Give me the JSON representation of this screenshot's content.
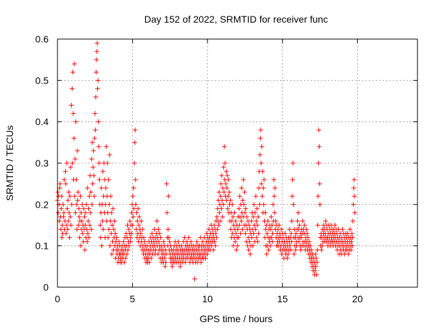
{
  "chart_data": {
    "type": "scatter",
    "title": "Day 152 of 2022, SRMTID for receiver func",
    "xlabel": "GPS time / hours",
    "ylabel": "SRMTID / TECUs",
    "xlim": [
      0,
      24
    ],
    "ylim": [
      0,
      0.6
    ],
    "x_ticks": [
      0,
      5,
      10,
      15,
      20
    ],
    "x_tick_labels": [
      "0",
      "5",
      "10",
      "15",
      "20"
    ],
    "y_ticks": [
      0,
      0.1,
      0.2,
      0.3,
      0.4,
      0.5,
      0.6
    ],
    "y_tick_labels": [
      "0",
      "0.1",
      "0.2",
      "0.3",
      "0.4",
      "0.5",
      "0.6"
    ],
    "grid": true,
    "marker": "+",
    "color": "#ff0000",
    "sample_step_hours": 0.025,
    "x_start": 0.0,
    "series": [
      {
        "name": "SRMTID",
        "y": [
          0.21,
          0.23,
          0.18,
          0.22,
          0.2,
          0.16,
          0.24,
          0.25,
          0.17,
          0.14,
          0.19,
          0.22,
          0.12,
          0.15,
          0.13,
          0.2,
          0.17,
          0.18,
          0.26,
          0.14,
          0.16,
          0.28,
          0.25,
          0.13,
          0.15,
          0.3,
          0.19,
          0.14,
          0.21,
          0.16,
          0.23,
          0.18,
          0.12,
          0.22,
          0.17,
          0.29,
          0.15,
          0.44,
          0.2,
          0.48,
          0.3,
          0.52,
          0.42,
          0.26,
          0.36,
          0.54,
          0.22,
          0.31,
          0.18,
          0.4,
          0.26,
          0.2,
          0.14,
          0.33,
          0.21,
          0.23,
          0.15,
          0.19,
          0.17,
          0.12,
          0.16,
          0.22,
          0.1,
          0.18,
          0.14,
          0.16,
          0.2,
          0.13,
          0.15,
          0.11,
          0.19,
          0.14,
          0.17,
          0.09,
          0.15,
          0.18,
          0.12,
          0.2,
          0.14,
          0.11,
          0.24,
          0.13,
          0.16,
          0.19,
          0.12,
          0.22,
          0.15,
          0.27,
          0.18,
          0.23,
          0.14,
          0.31,
          0.2,
          0.35,
          0.25,
          0.29,
          0.33,
          0.27,
          0.22,
          0.36,
          0.42,
          0.38,
          0.46,
          0.52,
          0.55,
          0.57,
          0.59,
          0.48,
          0.5,
          0.4,
          0.34,
          0.3,
          0.26,
          0.2,
          0.15,
          0.12,
          0.18,
          0.24,
          0.1,
          0.2,
          0.16,
          0.28,
          0.14,
          0.22,
          0.3,
          0.18,
          0.26,
          0.12,
          0.2,
          0.24,
          0.34,
          0.16,
          0.22,
          0.3,
          0.18,
          0.12,
          0.26,
          0.14,
          0.2,
          0.32,
          0.1,
          0.16,
          0.22,
          0.13,
          0.18,
          0.08,
          0.15,
          0.11,
          0.19,
          0.09,
          0.14,
          0.12,
          0.16,
          0.1,
          0.13,
          0.07,
          0.11,
          0.09,
          0.12,
          0.08,
          0.1,
          0.06,
          0.09,
          0.07,
          0.11,
          0.08,
          0.1,
          0.06,
          0.08,
          0.07,
          0.09,
          0.06,
          0.1,
          0.08,
          0.07,
          0.09,
          0.11,
          0.08,
          0.06,
          0.1,
          0.12,
          0.09,
          0.07,
          0.13,
          0.1,
          0.08,
          0.12,
          0.15,
          0.09,
          0.11,
          0.14,
          0.1,
          0.13,
          0.16,
          0.12,
          0.11,
          0.15,
          0.13,
          0.18,
          0.2,
          0.15,
          0.22,
          0.17,
          0.24,
          0.19,
          0.3,
          0.35,
          0.38,
          0.26,
          0.2,
          0.14,
          0.18,
          0.12,
          0.16,
          0.13,
          0.19,
          0.11,
          0.15,
          0.17,
          0.12,
          0.14,
          0.1,
          0.13,
          0.16,
          0.11,
          0.12,
          0.09,
          0.14,
          0.1,
          0.08,
          0.12,
          0.09,
          0.11,
          0.07,
          0.1,
          0.08,
          0.06,
          0.09,
          0.07,
          0.1,
          0.06,
          0.08,
          0.07,
          0.09,
          0.11,
          0.06,
          0.08,
          0.1,
          0.12,
          0.09,
          0.07,
          0.11,
          0.13,
          0.08,
          0.1,
          0.12,
          0.09,
          0.11,
          0.14,
          0.1,
          0.08,
          0.12,
          0.09,
          0.11,
          0.13,
          0.16,
          0.1,
          0.12,
          0.08,
          0.14,
          0.11,
          0.09,
          0.13,
          0.1,
          0.07,
          0.12,
          0.09,
          0.06,
          0.1,
          0.08,
          0.07,
          0.09,
          0.06,
          0.11,
          0.08,
          0.1,
          0.07,
          0.05,
          0.09,
          0.06,
          0.08,
          0.25,
          0.18,
          0.12,
          0.1,
          0.14,
          0.22,
          0.12,
          0.09,
          0.11,
          0.08,
          0.07,
          0.1,
          0.06,
          0.09,
          0.07,
          0.05,
          0.08,
          0.06,
          0.09,
          0.07,
          0.1,
          0.06,
          0.08,
          0.11,
          0.07,
          0.09,
          0.06,
          0.1,
          0.08,
          0.07,
          0.09,
          0.11,
          0.06,
          0.08,
          0.1,
          0.07,
          0.05,
          0.09,
          0.06,
          0.08,
          0.1,
          0.07,
          0.09,
          0.06,
          0.08,
          0.11,
          0.07,
          0.09,
          0.12,
          0.08,
          0.06,
          0.1,
          0.07,
          0.09,
          0.11,
          0.08,
          0.1,
          0.07,
          0.09,
          0.12,
          0.08,
          0.1,
          0.06,
          0.09,
          0.07,
          0.11,
          0.08,
          0.1,
          0.07,
          0.09,
          0.06,
          0.08,
          0.1,
          0.07,
          0.09,
          0.02,
          0.08,
          0.06,
          0.1,
          0.07,
          0.09,
          0.11,
          0.08,
          0.06,
          0.1,
          0.07,
          0.09,
          0.08,
          0.1,
          0.07,
          0.12,
          0.08,
          0.06,
          0.1,
          0.09,
          0.07,
          0.11,
          0.08,
          0.1,
          0.07,
          0.09,
          0.12,
          0.08,
          0.1,
          0.07,
          0.09,
          0.11,
          0.13,
          0.08,
          0.1,
          0.12,
          0.09,
          0.11,
          0.14,
          0.1,
          0.12,
          0.09,
          0.13,
          0.11,
          0.15,
          0.1,
          0.12,
          0.14,
          0.11,
          0.13,
          0.09,
          0.12,
          0.15,
          0.11,
          0.14,
          0.1,
          0.13,
          0.16,
          0.12,
          0.17,
          0.14,
          0.19,
          0.16,
          0.21,
          0.15,
          0.23,
          0.18,
          0.2,
          0.16,
          0.22,
          0.25,
          0.19,
          0.27,
          0.21,
          0.17,
          0.24,
          0.2,
          0.29,
          0.23,
          0.34,
          0.26,
          0.3,
          0.22,
          0.25,
          0.28,
          0.21,
          0.24,
          0.27,
          0.19,
          0.22,
          0.26,
          0.18,
          0.23,
          0.2,
          0.16,
          0.21,
          0.14,
          0.18,
          0.12,
          0.16,
          0.2,
          0.13,
          0.17,
          0.1,
          0.15,
          0.12,
          0.18,
          0.14,
          0.11,
          0.16,
          0.13,
          0.09,
          0.15,
          0.12,
          0.1,
          0.14,
          0.17,
          0.12,
          0.19,
          0.15,
          0.22,
          0.17,
          0.13,
          0.2,
          0.16,
          0.24,
          0.18,
          0.14,
          0.21,
          0.17,
          0.26,
          0.2,
          0.15,
          0.23,
          0.18,
          0.13,
          0.19,
          0.15,
          0.11,
          0.17,
          0.14,
          0.1,
          0.16,
          0.12,
          0.09,
          0.15,
          0.11,
          0.14,
          0.08,
          0.13,
          0.1,
          0.16,
          0.12,
          0.18,
          0.14,
          0.1,
          0.17,
          0.13,
          0.2,
          0.15,
          0.11,
          0.18,
          0.14,
          0.22,
          0.16,
          0.12,
          0.19,
          0.15,
          0.11,
          0.17,
          0.13,
          0.24,
          0.28,
          0.2,
          0.32,
          0.36,
          0.38,
          0.3,
          0.25,
          0.34,
          0.22,
          0.28,
          0.18,
          0.24,
          0.2,
          0.26,
          0.16,
          0.12,
          0.18,
          0.14,
          0.1,
          0.15,
          0.08,
          0.13,
          0.1,
          0.16,
          0.12,
          0.09,
          0.14,
          0.11,
          0.15,
          0.12,
          0.1,
          0.14,
          0.17,
          0.12,
          0.15,
          0.11,
          0.13,
          0.2,
          0.16,
          0.26,
          0.22,
          0.18,
          0.24,
          0.14,
          0.16,
          0.12,
          0.15,
          0.1,
          0.13,
          0.11,
          0.14,
          0.1,
          0.12,
          0.15,
          0.11,
          0.13,
          0.09,
          0.12,
          0.1,
          0.14,
          0.08,
          0.11,
          0.13,
          0.09,
          0.12,
          0.1,
          0.07,
          0.11,
          0.09,
          0.13,
          0.1,
          0.08,
          0.12,
          0.09,
          0.11,
          0.07,
          0.1,
          0.08,
          0.12,
          0.09,
          0.11,
          0.14,
          0.1,
          0.12,
          0.09,
          0.13,
          0.11,
          0.16,
          0.22,
          0.26,
          0.3,
          0.2,
          0.12,
          0.08,
          0.14,
          0.1,
          0.12,
          0.09,
          0.13,
          0.11,
          0.1,
          0.14,
          0.16,
          0.12,
          0.18,
          0.14,
          0.11,
          0.15,
          0.12,
          0.1,
          0.13,
          0.09,
          0.12,
          0.14,
          0.1,
          0.13,
          0.16,
          0.11,
          0.14,
          0.1,
          0.13,
          0.15,
          0.11,
          0.09,
          0.12,
          0.1,
          0.14,
          0.11,
          0.13,
          0.09,
          0.12,
          0.1,
          0.08,
          0.11,
          0.09,
          0.07,
          0.1,
          0.08,
          0.06,
          0.09,
          0.07,
          0.05,
          0.08,
          0.06,
          0.04,
          0.07,
          0.05,
          0.03,
          0.06,
          0.04,
          0.08,
          0.05,
          0.07,
          0.03,
          0.06,
          0.09,
          0.15,
          0.22,
          0.3,
          0.38,
          0.34,
          0.25,
          0.2,
          0.12,
          0.1,
          0.13,
          0.09,
          0.12,
          0.1,
          0.14,
          0.11,
          0.13,
          0.15,
          0.12,
          0.14,
          0.11,
          0.13,
          0.16,
          0.12,
          0.15,
          0.11,
          0.14,
          0.12,
          0.1,
          0.13,
          0.11,
          0.15,
          0.12,
          0.14,
          0.1,
          0.13,
          0.11,
          0.15,
          0.12,
          0.14,
          0.11,
          0.13,
          0.1,
          0.12,
          0.14,
          0.11,
          0.13,
          0.15,
          0.12,
          0.1,
          0.14,
          0.11,
          0.13,
          0.09,
          0.12,
          0.1,
          0.14,
          0.11,
          0.08,
          0.12,
          0.1,
          0.13,
          0.09,
          0.11,
          0.08,
          0.12,
          0.1,
          0.14,
          0.11,
          0.09,
          0.13,
          0.1,
          0.12,
          0.08,
          0.11,
          0.09,
          0.13,
          0.1,
          0.12,
          0.09,
          0.11,
          0.13,
          0.1,
          0.08,
          0.12,
          0.09,
          0.11,
          0.14,
          0.1,
          0.12,
          0.09,
          0.11,
          0.13,
          0.1,
          0.12,
          0.16,
          0.2,
          0.24,
          0.26,
          0.22,
          0.18
        ]
      }
    ]
  }
}
